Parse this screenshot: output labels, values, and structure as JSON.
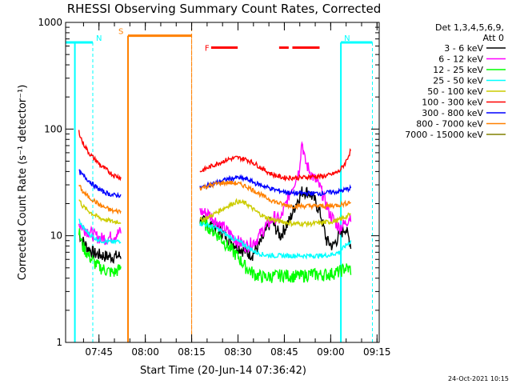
{
  "chart_data": {
    "type": "line",
    "title": "RHESSI Observing Summary Count Rates, Corrected",
    "ylabel": "Corrected Count Rate (s⁻¹ detector⁻¹)",
    "xlabel": "Start Time (20-Jun-14 07:36:42)",
    "yscale": "log",
    "ylim": [
      1,
      1000
    ],
    "xlim_minutes": [
      -2.5,
      99
    ],
    "x_ticks": [
      {
        "label": "07:45",
        "minutes": 8.3
      },
      {
        "label": "08:00",
        "minutes": 23.3
      },
      {
        "label": "08:15",
        "minutes": 38.3
      },
      {
        "label": "08:30",
        "minutes": 53.3
      },
      {
        "label": "08:45",
        "minutes": 68.3
      },
      {
        "label": "09:00",
        "minutes": 83.3
      },
      {
        "label": "09:15",
        "minutes": 98.3
      }
    ],
    "y_ticks": [
      {
        "label": "1",
        "value": 1
      },
      {
        "label": "10",
        "value": 10
      },
      {
        "label": "100",
        "value": 100
      },
      {
        "label": "1000",
        "value": 1000
      }
    ],
    "legend": {
      "placement": "top-right",
      "header": [
        "Det 1,3,4,5,6,9,",
        "Att 0"
      ]
    },
    "series": [
      {
        "name": "3 - 6 keV",
        "color": "#000000",
        "segment1": [
          [
            1.8,
            10.5
          ],
          [
            3,
            9
          ],
          [
            5,
            7.5
          ],
          [
            7,
            6.8
          ],
          [
            9,
            6.6
          ],
          [
            11,
            6.4
          ],
          [
            13,
            6.4
          ],
          [
            15.5,
            6.5
          ]
        ],
        "segment2": [
          [
            41,
            14
          ],
          [
            44,
            13
          ],
          [
            47,
            11.5
          ],
          [
            50,
            9.5
          ],
          [
            53,
            8
          ],
          [
            56,
            7
          ],
          [
            58,
            6.7
          ],
          [
            61,
            9
          ],
          [
            64,
            14
          ],
          [
            67,
            10
          ],
          [
            70,
            14
          ],
          [
            72,
            20
          ],
          [
            74,
            26
          ],
          [
            76,
            26
          ],
          [
            78,
            22
          ],
          [
            80,
            16
          ],
          [
            82,
            9
          ],
          [
            84,
            8
          ],
          [
            86,
            10
          ],
          [
            88,
            12
          ],
          [
            90,
            8
          ]
        ]
      },
      {
        "name": "6 - 12 keV",
        "color": "#ff00ff",
        "segment1": [
          [
            1.8,
            13
          ],
          [
            3,
            12
          ],
          [
            5,
            11
          ],
          [
            7,
            10
          ],
          [
            9,
            9.5
          ],
          [
            11,
            9.5
          ],
          [
            13,
            10
          ],
          [
            15.5,
            11
          ]
        ],
        "segment2": [
          [
            41,
            17
          ],
          [
            44,
            16
          ],
          [
            47,
            13
          ],
          [
            50,
            11
          ],
          [
            53,
            9
          ],
          [
            56,
            8
          ],
          [
            59,
            9
          ],
          [
            62,
            12
          ],
          [
            65,
            15
          ],
          [
            67,
            14
          ],
          [
            70,
            25
          ],
          [
            73,
            40
          ],
          [
            74,
            78
          ],
          [
            75,
            50
          ],
          [
            77,
            38
          ],
          [
            80,
            28
          ],
          [
            83,
            16
          ],
          [
            86,
            12
          ],
          [
            88,
            13
          ],
          [
            90,
            16
          ]
        ]
      },
      {
        "name": "12 - 25 keV",
        "color": "#00ff00",
        "segment1": [
          [
            1.8,
            11
          ],
          [
            3,
            8
          ],
          [
            5,
            6.5
          ],
          [
            7,
            5.5
          ],
          [
            9,
            5
          ],
          [
            11,
            4.7
          ],
          [
            13,
            4.5
          ],
          [
            15.5,
            5
          ]
        ],
        "segment2": [
          [
            41,
            14
          ],
          [
            44,
            12
          ],
          [
            47,
            10
          ],
          [
            50,
            8
          ],
          [
            53,
            6.5
          ],
          [
            56,
            5
          ],
          [
            59,
            4.3
          ],
          [
            62,
            4.1
          ],
          [
            65,
            4.2
          ],
          [
            68,
            4.3
          ],
          [
            71,
            4.2
          ],
          [
            74,
            4.2
          ],
          [
            77,
            4.4
          ],
          [
            80,
            4.3
          ],
          [
            83,
            4.4
          ],
          [
            86,
            4.6
          ],
          [
            88,
            5
          ],
          [
            90,
            4.8
          ]
        ]
      },
      {
        "name": "25 - 50 keV",
        "color": "#00ffff",
        "segment1": [
          [
            1.8,
            14
          ],
          [
            3,
            12
          ],
          [
            5,
            10.5
          ],
          [
            7,
            9.5
          ],
          [
            9,
            9
          ],
          [
            11,
            8.8
          ],
          [
            13,
            8.7
          ],
          [
            15.5,
            9
          ]
        ],
        "segment2": [
          [
            41,
            13
          ],
          [
            44,
            12.5
          ],
          [
            47,
            11.5
          ],
          [
            50,
            10
          ],
          [
            53,
            9
          ],
          [
            56,
            8
          ],
          [
            59,
            7
          ],
          [
            62,
            6.6
          ],
          [
            65,
            6.5
          ],
          [
            68,
            6.5
          ],
          [
            71,
            6.5
          ],
          [
            74,
            6.5
          ],
          [
            77,
            6.5
          ],
          [
            80,
            6.5
          ],
          [
            83,
            6.6
          ],
          [
            86,
            7
          ],
          [
            88,
            8
          ],
          [
            90,
            9
          ]
        ]
      },
      {
        "name": "50 - 100 keV",
        "color": "#cccc00",
        "segment1": [
          [
            1.8,
            22
          ],
          [
            3,
            19
          ],
          [
            5,
            17
          ],
          [
            7,
            15.5
          ],
          [
            9,
            14.5
          ],
          [
            11,
            14
          ],
          [
            13,
            13.5
          ],
          [
            15.5,
            13.5
          ]
        ],
        "segment2": [
          [
            41,
            14
          ],
          [
            44,
            15
          ],
          [
            47,
            17
          ],
          [
            50,
            19
          ],
          [
            53,
            21
          ],
          [
            56,
            20
          ],
          [
            59,
            17
          ],
          [
            62,
            15
          ],
          [
            65,
            14
          ],
          [
            68,
            13.5
          ],
          [
            71,
            13
          ],
          [
            74,
            13
          ],
          [
            77,
            13
          ],
          [
            80,
            13.2
          ],
          [
            83,
            13.5
          ],
          [
            86,
            14
          ],
          [
            88,
            15
          ],
          [
            90,
            16
          ]
        ]
      },
      {
        "name": "100 - 300 keV",
        "color": "#ff0000",
        "segment1": [
          [
            1.8,
            95
          ],
          [
            3,
            75
          ],
          [
            5,
            60
          ],
          [
            7,
            52
          ],
          [
            9,
            45
          ],
          [
            11,
            41
          ],
          [
            13,
            37
          ],
          [
            15.5,
            35
          ]
        ],
        "segment2": [
          [
            41,
            40
          ],
          [
            44,
            44
          ],
          [
            47,
            48
          ],
          [
            50,
            52
          ],
          [
            53,
            54
          ],
          [
            56,
            52
          ],
          [
            59,
            47
          ],
          [
            62,
            41
          ],
          [
            65,
            37
          ],
          [
            68,
            35
          ],
          [
            71,
            35
          ],
          [
            74,
            35
          ],
          [
            77,
            36
          ],
          [
            80,
            36
          ],
          [
            83,
            37
          ],
          [
            86,
            40
          ],
          [
            88,
            48
          ],
          [
            90,
            65
          ]
        ]
      },
      {
        "name": "300 - 800 keV",
        "color": "#0000ff",
        "segment1": [
          [
            1.8,
            40
          ],
          [
            3,
            37
          ],
          [
            5,
            33
          ],
          [
            7,
            29
          ],
          [
            9,
            26.5
          ],
          [
            11,
            25
          ],
          [
            13,
            24
          ],
          [
            15.5,
            24
          ]
        ],
        "segment2": [
          [
            41,
            28
          ],
          [
            44,
            30
          ],
          [
            47,
            32
          ],
          [
            50,
            34
          ],
          [
            53,
            35
          ],
          [
            56,
            34
          ],
          [
            59,
            31
          ],
          [
            62,
            29
          ],
          [
            65,
            27
          ],
          [
            68,
            26
          ],
          [
            71,
            25
          ],
          [
            74,
            25
          ],
          [
            77,
            25
          ],
          [
            80,
            25
          ],
          [
            83,
            25.5
          ],
          [
            86,
            26
          ],
          [
            88,
            27
          ],
          [
            90,
            28
          ]
        ]
      },
      {
        "name": "800 - 7000 keV",
        "color": "#ff8000",
        "segment1": [
          [
            1.8,
            30
          ],
          [
            3,
            26
          ],
          [
            5,
            23
          ],
          [
            7,
            21
          ],
          [
            9,
            19
          ],
          [
            11,
            18
          ],
          [
            13,
            17
          ],
          [
            15.5,
            17
          ]
        ],
        "segment2": [
          [
            41,
            28
          ],
          [
            44,
            29.5
          ],
          [
            47,
            31
          ],
          [
            50,
            31.5
          ],
          [
            53,
            31
          ],
          [
            56,
            29
          ],
          [
            59,
            26
          ],
          [
            62,
            23
          ],
          [
            65,
            21
          ],
          [
            68,
            19.5
          ],
          [
            71,
            19
          ],
          [
            74,
            19
          ],
          [
            77,
            19
          ],
          [
            80,
            19
          ],
          [
            83,
            19
          ],
          [
            86,
            19.5
          ],
          [
            88,
            20
          ],
          [
            90,
            21
          ]
        ]
      },
      {
        "name": "7000 - 15000 keV",
        "color": "#808000",
        "segment1": [],
        "segment2": []
      }
    ],
    "flags": [
      {
        "label": "N",
        "color": "#00ffff",
        "level": 650,
        "start": -2.5,
        "end": 6.3
      },
      {
        "label": "N",
        "color": "#00ffff",
        "level": 650,
        "start": 86.6,
        "end": 96.8
      },
      {
        "label": "S",
        "color": "#ff8000",
        "level": 750,
        "start": 17.7,
        "end": 38.3
      },
      {
        "label": "F",
        "color": "#ff0000",
        "level": 580,
        "segments": [
          [
            44.6,
            53.2
          ],
          [
            66.6,
            69.7
          ],
          [
            70.9,
            79.7
          ]
        ]
      }
    ],
    "timestamp": "24-Oct-2021 10:15"
  }
}
